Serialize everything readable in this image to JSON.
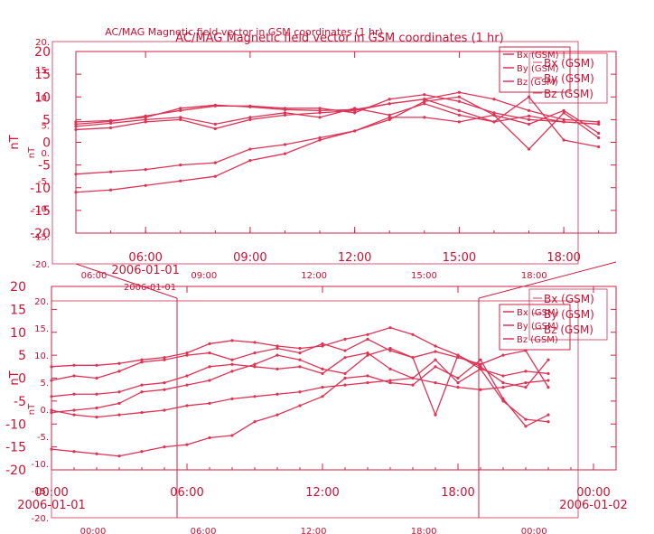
{
  "page": {
    "title": "AC/MAG  Magnetic field vector in GSM coordinates (1 hr)",
    "ghost_title": "AC/MAG  Magnetic field vector in GSM coordinates (1 hr)"
  },
  "colors": {
    "ink": "#cc1133",
    "frame": "#cc2244",
    "series": "#dd3355"
  },
  "chart_data": [
    {
      "type": "line",
      "title": "AC/MAG  Magnetic field vector in GSM coordinates (1 hr)",
      "ylabel": "nT",
      "ylim": [
        -20,
        20
      ],
      "yticks": [
        "20",
        "15",
        "10",
        "5",
        "0",
        "-5",
        "-10",
        "-15",
        "-20"
      ],
      "ghost_yticks": [
        "20.",
        "15.",
        "10.",
        "5.",
        "0.",
        "-5.",
        "-10.",
        "-15.",
        "-20."
      ],
      "ghost_ylabel": "nT",
      "x_start": "2006-01-01 04:00",
      "x_end": "2006-01-01 19:30",
      "xticks": [
        "06:00",
        "09:00",
        "12:00",
        "15:00",
        "18:00"
      ],
      "x_date_label": "2006-01-01",
      "ghost_xticks": [
        "06:00",
        "09:00",
        "12:00",
        "15:00",
        "18:00"
      ],
      "ghost_date_label": "2006-01-01",
      "legend": [
        "Bx (GSM)",
        "By (GSM)",
        "Bz (GSM)"
      ],
      "series": [
        {
          "name": "Bx (GSM)",
          "x": [
            "04:00",
            "05:00",
            "06:00",
            "07:00",
            "08:00",
            "09:00",
            "10:00",
            "11:00",
            "12:00",
            "13:00",
            "14:00",
            "15:00",
            "16:00",
            "17:00",
            "18:00",
            "19:00"
          ],
          "values": [
            4.5,
            4.8,
            5.5,
            7.5,
            8.2,
            7.8,
            7.2,
            7.0,
            7.2,
            8.5,
            9.5,
            11.0,
            9.5,
            7.0,
            5.0,
            4.5
          ]
        },
        {
          "name": "By (GSM)",
          "x": [
            "04:00",
            "05:00",
            "06:00",
            "07:00",
            "08:00",
            "09:00",
            "10:00",
            "11:00",
            "12:00",
            "13:00",
            "14:00",
            "15:00",
            "16:00",
            "17:00",
            "18:00",
            "19:00"
          ],
          "values": [
            3.5,
            4.2,
            5.0,
            5.5,
            4.0,
            5.5,
            6.5,
            5.5,
            7.5,
            6.0,
            8.5,
            6.0,
            4.5,
            5.8,
            4.5,
            4.0
          ]
        },
        {
          "name": "Bz (GSM)",
          "x": [
            "04:00",
            "05:00",
            "06:00",
            "07:00",
            "08:00",
            "09:00",
            "10:00",
            "11:00",
            "12:00",
            "13:00",
            "14:00",
            "15:00",
            "16:00",
            "17:00",
            "18:00",
            "19:00"
          ],
          "values": [
            -7.0,
            -6.5,
            -6.0,
            -5.0,
            -4.5,
            -1.5,
            -0.5,
            1.0,
            2.5,
            5.0,
            9.0,
            10.0,
            6.0,
            -1.5,
            6.5,
            1.0
          ]
        },
        {
          "name": "Bx (GSM)",
          "x": [
            "04:00",
            "05:00",
            "06:00",
            "07:00",
            "08:00",
            "09:00",
            "10:00",
            "11:00",
            "12:00",
            "13:00",
            "14:00",
            "15:00",
            "16:00",
            "17:00",
            "18:00",
            "19:00"
          ],
          "values": [
            2.8,
            3.2,
            4.5,
            5.0,
            3.0,
            5.0,
            6.0,
            6.5,
            7.0,
            8.5,
            9.5,
            7.0,
            4.5,
            10.0,
            0.5,
            -1.0
          ]
        },
        {
          "name": "By (GSM)",
          "x": [
            "04:00",
            "05:00",
            "06:00",
            "07:00",
            "08:00",
            "09:00",
            "10:00",
            "11:00",
            "12:00",
            "13:00",
            "14:00",
            "15:00",
            "16:00",
            "17:00",
            "18:00",
            "19:00"
          ],
          "values": [
            -11.0,
            -10.5,
            -9.5,
            -8.5,
            -7.5,
            -4.0,
            -2.5,
            0.5,
            2.5,
            5.5,
            5.5,
            4.5,
            6.0,
            4.0,
            7.0,
            2.0
          ]
        },
        {
          "name": "Bz (GSM)",
          "x": [
            "04:00",
            "05:00",
            "06:00",
            "07:00",
            "08:00",
            "09:00",
            "10:00",
            "11:00",
            "12:00",
            "13:00",
            "14:00",
            "15:00",
            "16:00",
            "17:00",
            "18:00",
            "19:00"
          ],
          "values": [
            4.0,
            4.6,
            5.8,
            7.0,
            8.0,
            8.0,
            7.5,
            7.5,
            6.5,
            9.5,
            10.5,
            9.0,
            6.5,
            5.0,
            4.5,
            4.0
          ]
        }
      ]
    },
    {
      "type": "line",
      "title": "",
      "ylabel": "nT",
      "ylim": [
        -20,
        20
      ],
      "yticks": [
        "20",
        "15",
        "10",
        "5",
        "0",
        "-5",
        "-10",
        "-15",
        "-20"
      ],
      "ghost_yticks": [
        "20.",
        "15.",
        "10.",
        "5.",
        "0.",
        "-5.",
        "-10.",
        "-15.",
        "-20."
      ],
      "ghost_ylabel": "nT",
      "x_start": "2006-01-01 00:00",
      "x_end": "2006-01-02 01:00",
      "xticks": [
        "00:00",
        "06:00",
        "12:00",
        "18:00",
        "00:00"
      ],
      "x_date_labels": [
        "2006-01-01",
        "2006-01-02"
      ],
      "ghost_xticks": [
        "00:00",
        "06:00",
        "12:00",
        "18:00",
        "00:00"
      ],
      "legend": [
        "Bx (GSM)",
        "By (GSM)",
        "Bz (GSM)"
      ],
      "series": [
        {
          "name": "Bx (GSM)",
          "x": [
            "00:00",
            "01:00",
            "02:00",
            "03:00",
            "04:00",
            "05:00",
            "06:00",
            "07:00",
            "08:00",
            "09:00",
            "10:00",
            "11:00",
            "12:00",
            "13:00",
            "14:00",
            "15:00",
            "16:00",
            "17:00",
            "18:00",
            "19:00",
            "20:00",
            "21:00",
            "22:00"
          ],
          "values": [
            2.5,
            2.8,
            2.8,
            3.2,
            4.0,
            4.5,
            5.5,
            7.5,
            8.2,
            7.8,
            7.0,
            6.5,
            7.0,
            8.5,
            9.5,
            11.0,
            9.5,
            7.0,
            5.0,
            2.5,
            -1.0,
            -2.0,
            4.0
          ]
        },
        {
          "name": "By (GSM)",
          "x": [
            "00:00",
            "01:00",
            "02:00",
            "03:00",
            "04:00",
            "05:00",
            "06:00",
            "07:00",
            "08:00",
            "09:00",
            "10:00",
            "11:00",
            "12:00",
            "13:00",
            "14:00",
            "15:00",
            "16:00",
            "17:00",
            "18:00",
            "19:00",
            "20:00",
            "21:00",
            "22:00"
          ],
          "values": [
            -0.5,
            0.5,
            0.0,
            1.5,
            3.5,
            4.0,
            5.0,
            5.5,
            4.0,
            5.5,
            6.5,
            5.5,
            7.5,
            6.0,
            8.5,
            6.0,
            4.5,
            5.8,
            4.5,
            3.0,
            5.0,
            6.0,
            -2.0
          ]
        },
        {
          "name": "Bz (GSM)",
          "x": [
            "00:00",
            "01:00",
            "02:00",
            "03:00",
            "04:00",
            "05:00",
            "06:00",
            "07:00",
            "08:00",
            "09:00",
            "10:00",
            "11:00",
            "12:00",
            "13:00",
            "14:00",
            "15:00",
            "16:00",
            "17:00",
            "18:00",
            "19:00",
            "20:00",
            "21:00",
            "22:00"
          ],
          "values": [
            -7.5,
            -7.0,
            -6.5,
            -5.5,
            -3.0,
            -2.5,
            -1.5,
            -0.5,
            1.5,
            3.0,
            5.0,
            4.0,
            2.0,
            1.0,
            5.0,
            6.5,
            4.5,
            -8.0,
            5.0,
            2.0,
            -5.0,
            -9.0,
            -9.5
          ]
        },
        {
          "name": "Bx (GSM)",
          "x": [
            "00:00",
            "01:00",
            "02:00",
            "03:00",
            "04:00",
            "05:00",
            "06:00",
            "07:00",
            "08:00",
            "09:00",
            "10:00",
            "11:00",
            "12:00",
            "13:00",
            "14:00",
            "15:00",
            "16:00",
            "17:00",
            "18:00",
            "19:00",
            "20:00",
            "21:00",
            "22:00"
          ],
          "values": [
            -4.0,
            -3.5,
            -3.5,
            -3.0,
            -1.5,
            -1.0,
            0.5,
            2.5,
            3.0,
            2.5,
            2.0,
            2.5,
            1.0,
            4.5,
            5.5,
            2.0,
            0.0,
            4.0,
            -1.0,
            2.0,
            0.5,
            1.5,
            1.0
          ]
        },
        {
          "name": "By (GSM)",
          "x": [
            "00:00",
            "01:00",
            "02:00",
            "03:00",
            "04:00",
            "05:00",
            "06:00",
            "07:00",
            "08:00",
            "09:00",
            "10:00",
            "11:00",
            "12:00",
            "13:00",
            "14:00",
            "15:00",
            "16:00",
            "17:00",
            "18:00",
            "19:00",
            "20:00",
            "21:00",
            "22:00"
          ],
          "values": [
            -15.5,
            -16.0,
            -16.5,
            -17.0,
            -16.0,
            -15.0,
            -14.5,
            -13.0,
            -12.5,
            -9.5,
            -8.0,
            -6.0,
            -4.0,
            0.0,
            0.5,
            -1.0,
            -1.5,
            2.5,
            0.0,
            4.0,
            -4.5,
            -10.5,
            -8.0
          ]
        },
        {
          "name": "Bz (GSM)",
          "x": [
            "00:00",
            "01:00",
            "02:00",
            "03:00",
            "04:00",
            "05:00",
            "06:00",
            "07:00",
            "08:00",
            "09:00",
            "10:00",
            "11:00",
            "12:00",
            "13:00",
            "14:00",
            "15:00",
            "16:00",
            "17:00",
            "18:00",
            "19:00",
            "20:00",
            "21:00",
            "22:00"
          ],
          "values": [
            -7.0,
            -8.0,
            -8.5,
            -8.0,
            -7.5,
            -7.0,
            -6.0,
            -5.5,
            -4.5,
            -4.0,
            -3.5,
            -3.0,
            -2.0,
            -1.5,
            -1.0,
            -0.5,
            0.0,
            -1.0,
            -2.0,
            -2.5,
            -2.0,
            -1.0,
            -0.5
          ]
        }
      ]
    }
  ]
}
